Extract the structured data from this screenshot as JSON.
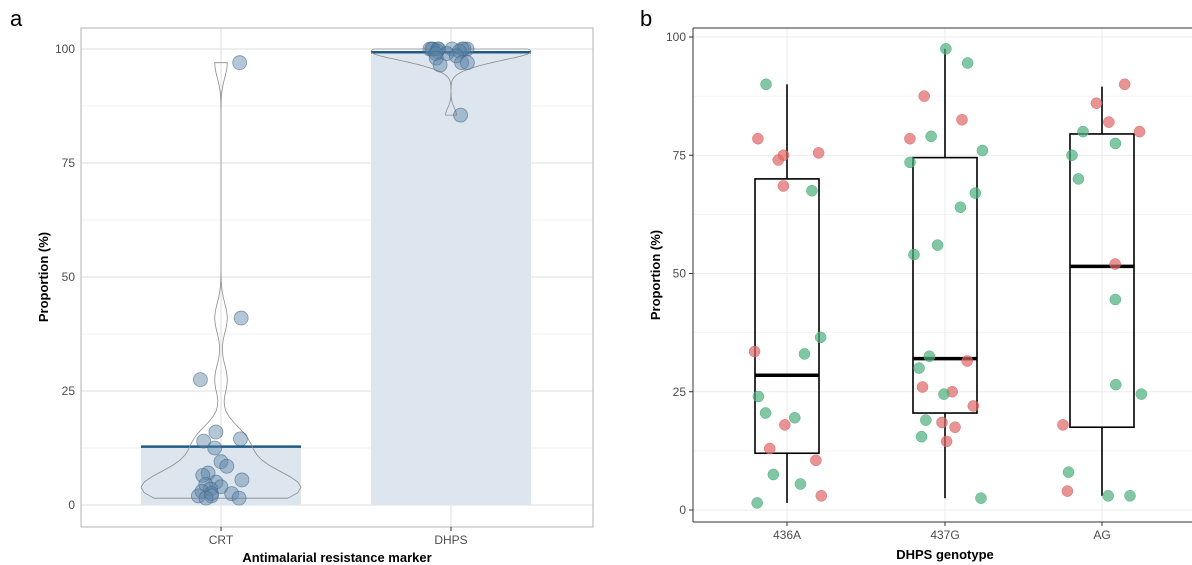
{
  "panel_a_label": "a",
  "panel_b_label": "b",
  "colors": {
    "a_point_fill": "#5b82a6",
    "a_bar_fill": "#dde5ee",
    "a_mean_line": "#1f5a85",
    "b_green": "#4caf7e",
    "b_red": "#e06666",
    "grid": "#ebebeb",
    "border": "#7f7f7f"
  },
  "chart_data": [
    {
      "id": "a",
      "type": "bar",
      "xlabel": "Antimalarial resistance marker",
      "ylabel": "Proportion (%)",
      "ylim": [
        0,
        100
      ],
      "yticks": [
        0,
        25,
        50,
        75,
        100
      ],
      "categories": [
        "CRT",
        "DHPS"
      ],
      "bar_values": [
        12.8,
        99.3
      ],
      "grid": true,
      "points": [
        [
          97,
          41,
          27.5,
          16,
          14.5,
          14,
          12.5,
          9.5,
          8.5,
          7,
          6.5,
          5.5,
          5,
          4.5,
          4,
          3.5,
          3,
          2.5,
          2.5,
          2,
          2,
          1.5,
          1.5
        ],
        [
          100,
          100,
          100,
          100,
          100,
          100,
          100,
          100,
          100,
          99.5,
          99.5,
          99,
          99,
          98.5,
          98,
          97,
          97,
          96.5,
          85.5
        ]
      ]
    },
    {
      "id": "b",
      "type": "box",
      "xlabel": "DHPS genotype",
      "ylabel": "Proportion (%)",
      "ylim": [
        0,
        100
      ],
      "yticks": [
        0,
        25,
        50,
        75,
        100
      ],
      "categories": [
        "436A",
        "437G",
        "AG"
      ],
      "boxes": [
        {
          "min": 1.5,
          "q1": 12,
          "median": 28.5,
          "q3": 70,
          "max": 90
        },
        {
          "min": 2.5,
          "q1": 20.5,
          "median": 32,
          "q3": 74.5,
          "max": 97.5
        },
        {
          "min": 3,
          "q1": 17.5,
          "median": 51.5,
          "q3": 79.5,
          "max": 89.5
        }
      ],
      "grid": true,
      "points": [
        [
          {
            "y": 90,
            "g": "green"
          },
          {
            "y": 78.5,
            "g": "red"
          },
          {
            "y": 75.5,
            "g": "red"
          },
          {
            "y": 75,
            "g": "red"
          },
          {
            "y": 74,
            "g": "red"
          },
          {
            "y": 68.5,
            "g": "red"
          },
          {
            "y": 67.5,
            "g": "green"
          },
          {
            "y": 36.5,
            "g": "green"
          },
          {
            "y": 33.5,
            "g": "red"
          },
          {
            "y": 33,
            "g": "green"
          },
          {
            "y": 24,
            "g": "green"
          },
          {
            "y": 20.5,
            "g": "green"
          },
          {
            "y": 19.5,
            "g": "green"
          },
          {
            "y": 18,
            "g": "red"
          },
          {
            "y": 13,
            "g": "red"
          },
          {
            "y": 10.5,
            "g": "red"
          },
          {
            "y": 7.5,
            "g": "green"
          },
          {
            "y": 5.5,
            "g": "green"
          },
          {
            "y": 3,
            "g": "red"
          },
          {
            "y": 1.5,
            "g": "green"
          }
        ],
        [
          {
            "y": 97.5,
            "g": "green"
          },
          {
            "y": 94.5,
            "g": "green"
          },
          {
            "y": 87.5,
            "g": "red"
          },
          {
            "y": 82.5,
            "g": "red"
          },
          {
            "y": 79,
            "g": "green"
          },
          {
            "y": 78.5,
            "g": "red"
          },
          {
            "y": 76,
            "g": "green"
          },
          {
            "y": 73.5,
            "g": "green"
          },
          {
            "y": 67,
            "g": "green"
          },
          {
            "y": 64,
            "g": "green"
          },
          {
            "y": 56,
            "g": "green"
          },
          {
            "y": 54,
            "g": "green"
          },
          {
            "y": 32.5,
            "g": "green"
          },
          {
            "y": 31.5,
            "g": "red"
          },
          {
            "y": 30,
            "g": "green"
          },
          {
            "y": 26,
            "g": "red"
          },
          {
            "y": 25,
            "g": "red"
          },
          {
            "y": 24.5,
            "g": "green"
          },
          {
            "y": 22,
            "g": "red"
          },
          {
            "y": 19,
            "g": "green"
          },
          {
            "y": 18.5,
            "g": "red"
          },
          {
            "y": 17.5,
            "g": "red"
          },
          {
            "y": 15.5,
            "g": "green"
          },
          {
            "y": 14.5,
            "g": "red"
          },
          {
            "y": 2.5,
            "g": "green"
          }
        ],
        [
          {
            "y": 90,
            "g": "red"
          },
          {
            "y": 86,
            "g": "red"
          },
          {
            "y": 82,
            "g": "red"
          },
          {
            "y": 80,
            "g": "red"
          },
          {
            "y": 80,
            "g": "green"
          },
          {
            "y": 77.5,
            "g": "green"
          },
          {
            "y": 75,
            "g": "green"
          },
          {
            "y": 70,
            "g": "green"
          },
          {
            "y": 52,
            "g": "red"
          },
          {
            "y": 44.5,
            "g": "green"
          },
          {
            "y": 26.5,
            "g": "green"
          },
          {
            "y": 24.5,
            "g": "green"
          },
          {
            "y": 18,
            "g": "red"
          },
          {
            "y": 8,
            "g": "green"
          },
          {
            "y": 4,
            "g": "red"
          },
          {
            "y": 3,
            "g": "green"
          },
          {
            "y": 3,
            "g": "green"
          }
        ]
      ]
    }
  ]
}
